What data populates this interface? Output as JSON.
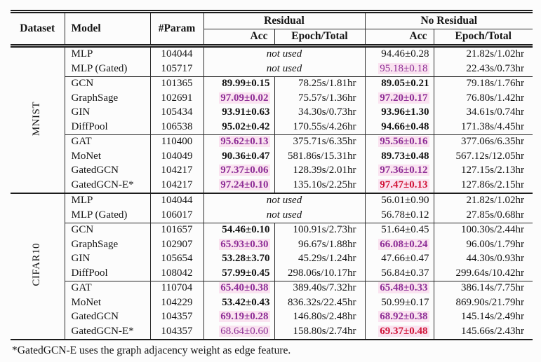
{
  "colors": {
    "purple": "#8e2e96",
    "red": "#d11438",
    "highlight": "#fae3f0",
    "text": "#141414",
    "rule": "#1c1c1c"
  },
  "table": {
    "header": {
      "dataset": "Dataset",
      "model": "Model",
      "param": "#Param",
      "residual": "Residual",
      "no_residual": "No Residual",
      "acc": "Acc",
      "epoch_total": "Epoch/Total"
    },
    "not_used": "not used",
    "footnote": "*GatedGCN-E uses the graph adjacency weight as edge feature.",
    "datasets": [
      {
        "name": "MNIST",
        "groups": [
          [
            {
              "model": "MLP",
              "param": "104044",
              "res": {
                "not_used": true
              },
              "no_res": {
                "acc": "94.46±0.28",
                "acc_style": "plain",
                "epoch": "21.82s/1.02hr"
              }
            },
            {
              "model": "MLP (Gated)",
              "param": "105717",
              "res": {
                "not_used": true
              },
              "no_res": {
                "acc": "95.18±0.18",
                "acc_style": "purple",
                "epoch": "22.43s/0.73hr"
              }
            }
          ],
          [
            {
              "model": "GCN",
              "param": "101365",
              "res": {
                "acc": "89.99±0.15",
                "acc_style": "bold",
                "epoch": "78.25s/1.81hr"
              },
              "no_res": {
                "acc": "89.05±0.21",
                "acc_style": "bold",
                "epoch": "79.18s/1.76hr"
              }
            },
            {
              "model": "GraphSage",
              "param": "102691",
              "res": {
                "acc": "97.09±0.02",
                "acc_style": "purple_bold",
                "epoch": "75.57s/1.36hr"
              },
              "no_res": {
                "acc": "97.20±0.17",
                "acc_style": "purple_bold",
                "epoch": "76.80s/1.42hr"
              }
            },
            {
              "model": "GIN",
              "param": "105434",
              "res": {
                "acc": "93.91±0.63",
                "acc_style": "bold",
                "epoch": "34.30s/0.73hr"
              },
              "no_res": {
                "acc": "93.96±1.30",
                "acc_style": "bold",
                "epoch": "34.61s/0.74hr"
              }
            },
            {
              "model": "DiffPool",
              "param": "106538",
              "res": {
                "acc": "95.02±0.42",
                "acc_style": "bold",
                "epoch": "170.55s/4.26hr"
              },
              "no_res": {
                "acc": "94.66±0.48",
                "acc_style": "bold",
                "epoch": "171.38s/4.45hr"
              }
            }
          ],
          [
            {
              "model": "GAT",
              "param": "110400",
              "res": {
                "acc": "95.62±0.13",
                "acc_style": "purple_bold",
                "epoch": "375.71s/6.35hr"
              },
              "no_res": {
                "acc": "95.56±0.16",
                "acc_style": "purple_bold",
                "epoch": "377.06s/6.35hr"
              }
            },
            {
              "model": "MoNet",
              "param": "104049",
              "res": {
                "acc": "90.36±0.47",
                "acc_style": "bold",
                "epoch": "581.86s/15.31hr"
              },
              "no_res": {
                "acc": "89.73±0.48",
                "acc_style": "bold",
                "epoch": "567.12s/12.05hr"
              }
            },
            {
              "model": "GatedGCN",
              "param": "104217",
              "res": {
                "acc": "97.37±0.06",
                "acc_style": "purple_bold",
                "epoch": "128.39s/2.01hr"
              },
              "no_res": {
                "acc": "97.36±0.12",
                "acc_style": "purple_bold",
                "epoch": "127.15s/2.13hr"
              }
            },
            {
              "model": "GatedGCN-E*",
              "param": "104217",
              "res": {
                "acc": "97.24±0.10",
                "acc_style": "purple_bold",
                "epoch": "135.10s/2.25hr"
              },
              "no_res": {
                "acc": "97.47±0.13",
                "acc_style": "red_bold",
                "epoch": "127.86s/2.15hr"
              }
            }
          ]
        ]
      },
      {
        "name": "CIFAR10",
        "groups": [
          [
            {
              "model": "MLP",
              "param": "104044",
              "res": {
                "not_used": true
              },
              "no_res": {
                "acc": "56.01±0.90",
                "acc_style": "plain",
                "epoch": "21.82s/1.02hr"
              }
            },
            {
              "model": "MLP (Gated)",
              "param": "106017",
              "res": {
                "not_used": true
              },
              "no_res": {
                "acc": "56.78±0.12",
                "acc_style": "plain",
                "epoch": "27.85s/0.68hr"
              }
            }
          ],
          [
            {
              "model": "GCN",
              "param": "101657",
              "res": {
                "acc": "54.46±0.10",
                "acc_style": "bold",
                "epoch": "100.91s/2.73hr"
              },
              "no_res": {
                "acc": "51.64±0.45",
                "acc_style": "plain",
                "epoch": "100.30s/2.44hr"
              }
            },
            {
              "model": "GraphSage",
              "param": "102907",
              "res": {
                "acc": "65.93±0.30",
                "acc_style": "purple_bold",
                "epoch": "96.67s/1.88hr"
              },
              "no_res": {
                "acc": "66.08±0.24",
                "acc_style": "purple_bold",
                "epoch": "96.00s/1.79hr"
              }
            },
            {
              "model": "GIN",
              "param": "105654",
              "res": {
                "acc": "53.28±3.70",
                "acc_style": "bold",
                "epoch": "45.29s/1.24hr"
              },
              "no_res": {
                "acc": "47.66±0.47",
                "acc_style": "plain",
                "epoch": "44.30s/0.93hr"
              }
            },
            {
              "model": "DiffPool",
              "param": "108042",
              "res": {
                "acc": "57.99±0.45",
                "acc_style": "bold",
                "epoch": "298.06s/10.17hr"
              },
              "no_res": {
                "acc": "56.84±0.37",
                "acc_style": "plain",
                "epoch": "299.64s/10.42hr"
              }
            }
          ],
          [
            {
              "model": "GAT",
              "param": "110704",
              "res": {
                "acc": "65.40±0.38",
                "acc_style": "purple_bold",
                "epoch": "389.40s/7.32hr"
              },
              "no_res": {
                "acc": "65.48±0.33",
                "acc_style": "purple_bold",
                "epoch": "386.14s/7.75hr"
              }
            },
            {
              "model": "MoNet",
              "param": "104229",
              "res": {
                "acc": "53.42±0.43",
                "acc_style": "bold",
                "epoch": "836.32s/22.45hr"
              },
              "no_res": {
                "acc": "50.99±0.17",
                "acc_style": "plain",
                "epoch": "869.90s/21.79hr"
              }
            },
            {
              "model": "GatedGCN",
              "param": "104357",
              "res": {
                "acc": "69.19±0.28",
                "acc_style": "purple_bold",
                "epoch": "146.80s/2.48hr"
              },
              "no_res": {
                "acc": "68.92±0.38",
                "acc_style": "purple_bold",
                "epoch": "145.14s/2.49hr"
              }
            },
            {
              "model": "GatedGCN-E*",
              "param": "104357",
              "res": {
                "acc": "68.64±0.60",
                "acc_style": "purple",
                "epoch": "158.80s/2.74hr"
              },
              "no_res": {
                "acc": "69.37±0.48",
                "acc_style": "red_bold",
                "epoch": "145.66s/2.43hr"
              }
            }
          ]
        ]
      }
    ]
  }
}
